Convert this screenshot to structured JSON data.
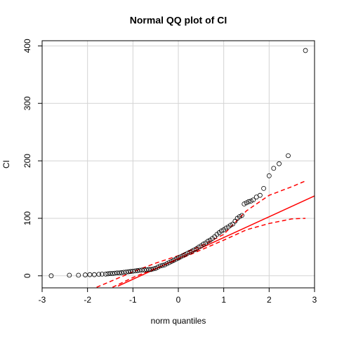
{
  "chart_data": {
    "type": "scatter",
    "title": "Normal QQ plot of  CI",
    "xlabel": "norm quantiles",
    "ylabel": "CI",
    "xlim": [
      -3,
      3
    ],
    "ylim": [
      -21,
      409
    ],
    "xticks": [
      -3,
      -2,
      -1,
      0,
      1,
      2,
      3
    ],
    "yticks": [
      0,
      100,
      200,
      300,
      400
    ],
    "grid": true,
    "points": {
      "color": "#000000",
      "x": [
        -2.8,
        -2.4,
        -2.2,
        -2.05,
        -1.95,
        -1.85,
        -1.75,
        -1.68,
        -1.6,
        -1.55,
        -1.5,
        -1.45,
        -1.4,
        -1.35,
        -1.3,
        -1.25,
        -1.2,
        -1.15,
        -1.1,
        -1.05,
        -1.0,
        -0.95,
        -0.9,
        -0.85,
        -0.8,
        -0.75,
        -0.7,
        -0.65,
        -0.6,
        -0.55,
        -0.5,
        -0.45,
        -0.4,
        -0.35,
        -0.3,
        -0.25,
        -0.2,
        -0.15,
        -0.1,
        -0.05,
        0,
        0.05,
        0.1,
        0.15,
        0.2,
        0.25,
        0.3,
        0.35,
        0.4,
        0.45,
        0.5,
        0.55,
        0.6,
        0.65,
        0.7,
        0.75,
        0.8,
        0.85,
        0.9,
        0.95,
        1.0,
        1.05,
        1.1,
        1.15,
        1.2,
        1.25,
        1.3,
        1.35,
        1.4,
        1.45,
        1.5,
        1.55,
        1.6,
        1.65,
        1.72,
        1.8,
        1.88,
        2.0,
        2.1,
        2.22,
        2.42,
        2.8
      ],
      "values": [
        0,
        1,
        1,
        1.5,
        2,
        2,
        2.5,
        3,
        3,
        3.5,
        4,
        4,
        4.5,
        5,
        5,
        5.5,
        6,
        6.5,
        7,
        7.5,
        8,
        8.5,
        9,
        9.5,
        10,
        10,
        10.5,
        11,
        11,
        12,
        13,
        15,
        17,
        18,
        19,
        21,
        23,
        25,
        27,
        29,
        31,
        33,
        35,
        37,
        39,
        41,
        43,
        45,
        47,
        50,
        52,
        55,
        57,
        60,
        62,
        65,
        68,
        72,
        75,
        78,
        80,
        83,
        85,
        88,
        90,
        95,
        100,
        103,
        105,
        125,
        127,
        129,
        130,
        132,
        137,
        140,
        152,
        174,
        187,
        195,
        209,
        392
      ]
    },
    "reference_line": {
      "color": "#ff0000",
      "x": [
        -1.33,
        3
      ],
      "values": [
        -18,
        139
      ]
    },
    "envelope": [
      {
        "color": "#ff0000",
        "x": [
          -1.45,
          -1,
          -0.5,
          0,
          0.5,
          1,
          1.5,
          2,
          2.5,
          2.8
        ],
        "values": [
          -20,
          -3,
          13,
          28,
          45,
          62,
          80,
          91,
          99,
          100
        ]
      },
      {
        "color": "#ff0000",
        "x": [
          -1.8,
          -1.5,
          -1,
          -0.5,
          0,
          0.5,
          1,
          1.5,
          2,
          2.5,
          2.8
        ],
        "values": [
          -20,
          -10,
          7,
          22,
          35,
          52,
          72,
          113,
          140,
          155,
          165
        ]
      }
    ]
  }
}
